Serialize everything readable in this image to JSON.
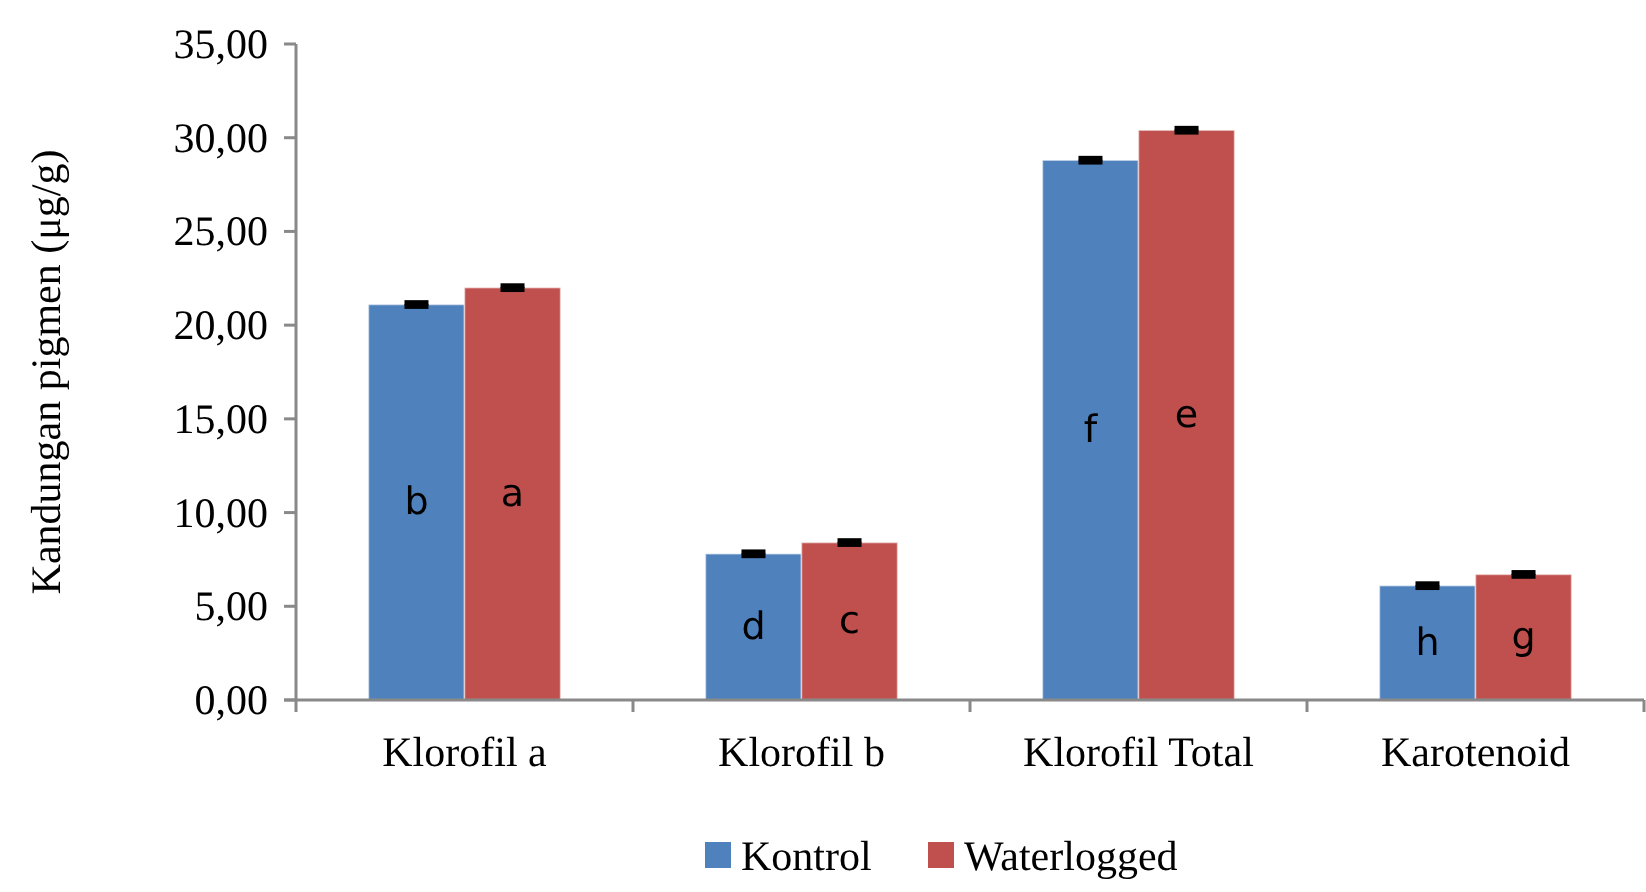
{
  "chart_data": {
    "type": "bar",
    "ylabel": "Kandungan pigmen (μg/g)",
    "categories": [
      "Klorofil a",
      "Klorofil b",
      "Klorofil Total",
      "Karotenoid"
    ],
    "series": [
      {
        "name": "Kontrol",
        "color": "#4f81bd",
        "values": [
          21.1,
          7.8,
          28.8,
          6.1
        ],
        "errors": [
          0.1,
          0.1,
          0.1,
          0.1
        ],
        "value_labels": [
          "b",
          "d",
          "f",
          "h"
        ]
      },
      {
        "name": "Waterlogged",
        "color": "#c0504d",
        "values": [
          22.0,
          8.4,
          30.4,
          6.7
        ],
        "errors": [
          0.1,
          0.1,
          0.1,
          0.1
        ],
        "value_labels": [
          "a",
          "c",
          "e",
          "g"
        ]
      }
    ],
    "ylim": [
      0,
      35
    ],
    "yticks": [
      {
        "value": 0,
        "label": "0,00"
      },
      {
        "value": 5,
        "label": "5,00"
      },
      {
        "value": 10,
        "label": "10,00"
      },
      {
        "value": 15,
        "label": "15,00"
      },
      {
        "value": 20,
        "label": "20,00"
      },
      {
        "value": 25,
        "label": "25,00"
      },
      {
        "value": 30,
        "label": "30,00"
      },
      {
        "value": 35,
        "label": "35,00"
      }
    ],
    "grid": false,
    "legend": "bottom"
  }
}
